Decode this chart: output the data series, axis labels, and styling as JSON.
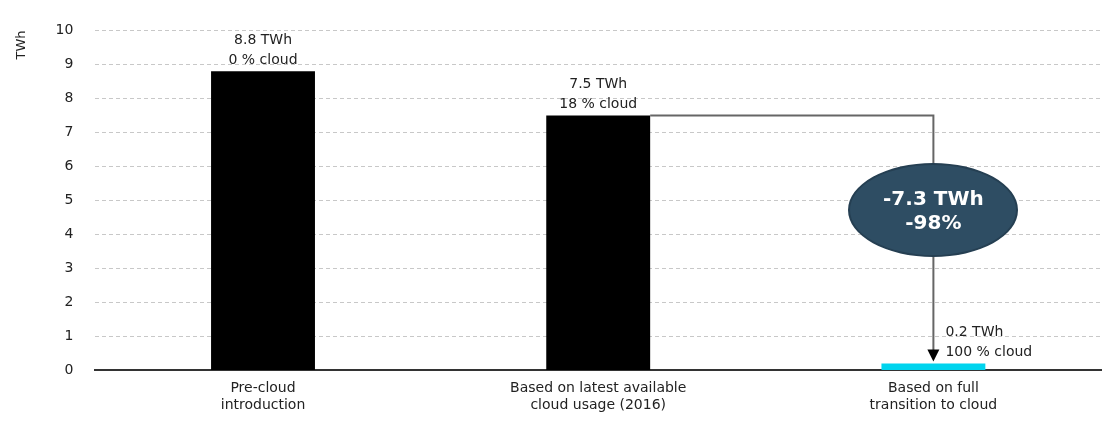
{
  "chart_data": {
    "type": "bar",
    "ylabel": "TWh",
    "categories": [
      "Pre-cloud\nintroduction",
      "Based on latest available\ncloud usage (2016)",
      "Based on full\ntransition to cloud"
    ],
    "values": [
      8.8,
      7.5,
      0.2
    ],
    "colors": [
      "#000000",
      "#000000",
      "#00d4ee"
    ],
    "value_labels": [
      "8.8 TWh\n0 % cloud",
      "7.5 TWh\n18 % cloud",
      "0.2 TWh\n100 % cloud"
    ],
    "ylim": [
      0,
      10
    ],
    "yticks": [
      0,
      1,
      2,
      3,
      4,
      5,
      6,
      7,
      8,
      9,
      10
    ],
    "grid": "y",
    "legend": false,
    "annotations": [
      "-7.3 TWh\n-98%"
    ]
  }
}
